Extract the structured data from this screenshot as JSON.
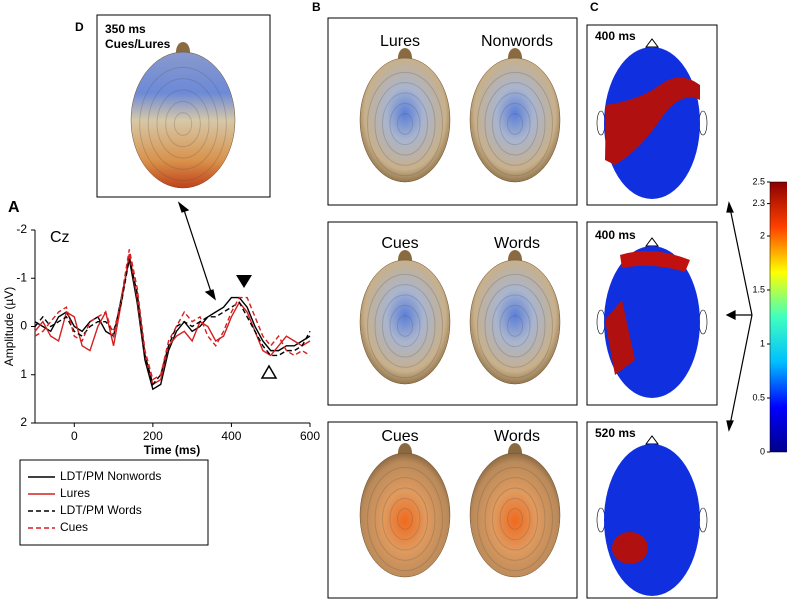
{
  "chart_data": [
    {
      "type": "line",
      "annotation": "Cz",
      "x_label": "Time (ms)",
      "y_label": "Amplitude (µV)",
      "xlim": [
        -100,
        600
      ],
      "xticks": [
        0,
        200,
        400,
        600
      ],
      "ylim": [
        2,
        -2
      ],
      "yticks": [
        -2,
        -1,
        0,
        1,
        2
      ],
      "x": [
        -100,
        -80,
        -60,
        -40,
        -20,
        0,
        20,
        40,
        60,
        80,
        100,
        120,
        140,
        160,
        180,
        200,
        220,
        240,
        260,
        280,
        300,
        320,
        340,
        360,
        380,
        400,
        420,
        440,
        460,
        480,
        500,
        520,
        540,
        560,
        580,
        600
      ],
      "series": [
        {
          "name": "LDT/PM Nonwords",
          "color": "#000000",
          "style": "solid",
          "values": [
            -0.1,
            0,
            0.1,
            -0.2,
            -0.3,
            0,
            0.1,
            -0.1,
            -0.2,
            0.1,
            0.2,
            -0.6,
            -1.4,
            -0.5,
            0.7,
            1.3,
            1.2,
            0.5,
            0.1,
            -0.1,
            0.1,
            0,
            -0.2,
            -0.3,
            -0.4,
            -0.6,
            -0.6,
            -0.4,
            0,
            0.3,
            0.5,
            0.5,
            0.4,
            0.4,
            0.3,
            0.2
          ]
        },
        {
          "name": "Lures",
          "color": "#d42020",
          "style": "solid",
          "values": [
            0.1,
            -0.1,
            0.2,
            0.3,
            -0.3,
            -0.2,
            0.4,
            0.5,
            0,
            -0.3,
            0.4,
            -0.5,
            -1.5,
            -0.6,
            0.6,
            1.2,
            1.1,
            0.4,
            0.2,
            0.1,
            0.3,
            -0.1,
            0,
            0.3,
            0.2,
            -0.2,
            -0.5,
            -0.3,
            0.1,
            0.5,
            0.6,
            0.4,
            0.2,
            0.3,
            0.4,
            0.3
          ]
        },
        {
          "name": "LDT/PM Words",
          "color": "#000000",
          "style": "dashed",
          "values": [
            0,
            -0.2,
            0,
            -0.1,
            -0.2,
            0.1,
            0.2,
            0,
            -0.1,
            -0.1,
            0.1,
            -0.5,
            -1.4,
            -0.7,
            0.6,
            1.2,
            1.0,
            0.4,
            0,
            -0.1,
            0,
            -0.1,
            -0.2,
            -0.2,
            -0.3,
            -0.4,
            -0.5,
            -0.2,
            0.1,
            0.4,
            0.6,
            0.6,
            0.5,
            0.5,
            0.4,
            0.1
          ]
        },
        {
          "name": "Cues",
          "color": "#d42020",
          "style": "dashed",
          "values": [
            0.2,
            0.1,
            -0.1,
            -0.3,
            -0.4,
            0.2,
            0.3,
            -0.1,
            -0.2,
            -0.3,
            0.2,
            -0.6,
            -1.6,
            -0.8,
            0.5,
            1.1,
            1.0,
            0.3,
            0,
            -0.3,
            -0.1,
            -0.2,
            0.2,
            0.4,
            0.1,
            -0.3,
            -0.6,
            -0.6,
            -0.2,
            0.2,
            0.4,
            0.2,
            0.5,
            0.6,
            0.5,
            0.6
          ]
        }
      ]
    },
    {
      "type": "colorbar",
      "ylim": [
        0,
        2.5
      ],
      "yticks": [
        0,
        0.5,
        1,
        1.5,
        2,
        2.3,
        2.5
      ],
      "colors": [
        "#00008b",
        "#0000ff",
        "#00bfff",
        "#40ffbf",
        "#ffff00",
        "#ff4000",
        "#8b0000"
      ]
    }
  ],
  "panel_letters": [
    "A",
    "B",
    "C",
    "D"
  ],
  "panel_b": [
    {
      "left": "Lures",
      "right": "Nonwords"
    },
    {
      "left": "Cues",
      "right": "Words"
    },
    {
      "left": "Cues",
      "right": "Words"
    }
  ],
  "panel_c": [
    "400 ms",
    "400 ms",
    "520 ms"
  ],
  "panel_d": {
    "time": "350 ms",
    "contrast": "Cues/Lures"
  }
}
